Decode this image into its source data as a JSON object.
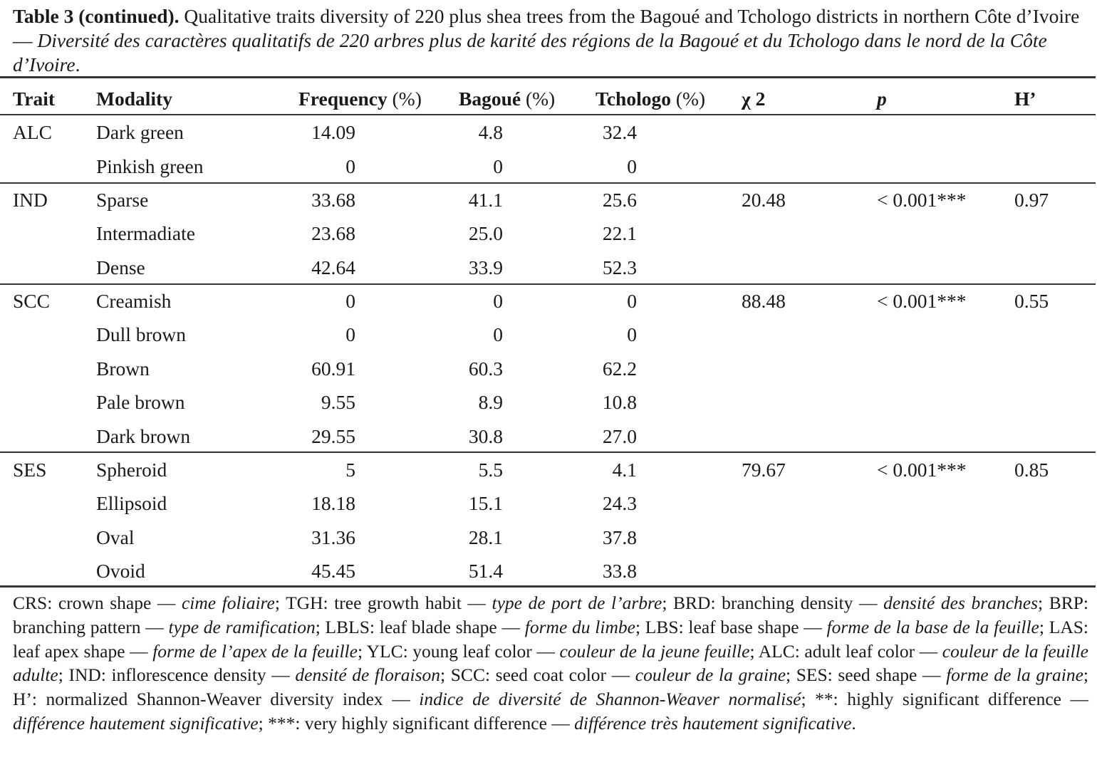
{
  "caption": {
    "label": "Table 3 (continued).",
    "english": " Qualitative traits diversity of 220 plus shea trees from the Bagoué and Tchologo districts in northern Côte d’Ivoire — ",
    "french": "Diversité des caractères qualitatifs de 220 arbres plus de karité des régions de la Bagoué et du Tchologo dans le nord de la Côte d’Ivoire",
    "end": "."
  },
  "headers": {
    "trait": "Trait",
    "modality": "Modality",
    "frequency": "Frequency",
    "frequency_unit": " (%)",
    "bagoue": "Bagoué",
    "bagoue_unit": " (%)",
    "tchologo": "Tchologo",
    "tchologo_unit": " (%)",
    "chi2": "χ 2",
    "p": "p",
    "h": "H’"
  },
  "rows": [
    {
      "trait": "ALC",
      "modality": "Dark green",
      "frequency": "14.09",
      "bagoue": "4.8",
      "tchologo": "32.4",
      "chi2": "",
      "p": "",
      "h": ""
    },
    {
      "trait": "",
      "modality": "Pinkish green",
      "frequency": "0",
      "bagoue": "0",
      "tchologo": "0",
      "chi2": "",
      "p": "",
      "h": ""
    },
    {
      "trait": "IND",
      "modality": "Sparse",
      "frequency": "33.68",
      "bagoue": "41.1",
      "tchologo": "25.6",
      "chi2": "20.48",
      "p": "< 0.001***",
      "h": "0.97"
    },
    {
      "trait": "",
      "modality": "Intermadiate",
      "frequency": "23.68",
      "bagoue": "25.0",
      "tchologo": "22.1",
      "chi2": "",
      "p": "",
      "h": ""
    },
    {
      "trait": "",
      "modality": "Dense",
      "frequency": "42.64",
      "bagoue": "33.9",
      "tchologo": "52.3",
      "chi2": "",
      "p": "",
      "h": ""
    },
    {
      "trait": "SCC",
      "modality": "Creamish",
      "frequency": "0",
      "bagoue": "0",
      "tchologo": "0",
      "chi2": "88.48",
      "p": "< 0.001***",
      "h": "0.55"
    },
    {
      "trait": "",
      "modality": "Dull brown",
      "frequency": "0",
      "bagoue": "0",
      "tchologo": "0",
      "chi2": "",
      "p": "",
      "h": ""
    },
    {
      "trait": "",
      "modality": "Brown",
      "frequency": "60.91",
      "bagoue": "60.3",
      "tchologo": "62.2",
      "chi2": "",
      "p": "",
      "h": ""
    },
    {
      "trait": "",
      "modality": "Pale brown",
      "frequency": "9.55",
      "bagoue": "8.9",
      "tchologo": "10.8",
      "chi2": "",
      "p": "",
      "h": ""
    },
    {
      "trait": "",
      "modality": "Dark brown",
      "frequency": "29.55",
      "bagoue": "30.8",
      "tchologo": "27.0",
      "chi2": "",
      "p": "",
      "h": ""
    },
    {
      "trait": "SES",
      "modality": "Spheroid",
      "frequency": "5",
      "bagoue": "5.5",
      "tchologo": "4.1",
      "chi2": "79.67",
      "p": "< 0.001***",
      "h": "0.85"
    },
    {
      "trait": "",
      "modality": "Ellipsoid",
      "frequency": "18.18",
      "bagoue": "15.1",
      "tchologo": "24.3",
      "chi2": "",
      "p": "",
      "h": ""
    },
    {
      "trait": "",
      "modality": "Oval",
      "frequency": "31.36",
      "bagoue": "28.1",
      "tchologo": "37.8",
      "chi2": "",
      "p": "",
      "h": ""
    },
    {
      "trait": "",
      "modality": "Ovoid",
      "frequency": "45.45",
      "bagoue": "51.4",
      "tchologo": "33.8",
      "chi2": "",
      "p": "",
      "h": ""
    }
  ],
  "footnote": [
    {
      "t": "CRS: crown shape — ",
      "i": false
    },
    {
      "t": "cime foliaire",
      "i": true
    },
    {
      "t": "; TGH: tree growth habit — ",
      "i": false
    },
    {
      "t": "type de port de l’arbre",
      "i": true
    },
    {
      "t": "; BRD: branching density — ",
      "i": false
    },
    {
      "t": "densité des branches",
      "i": true
    },
    {
      "t": "; BRP: branching pattern — ",
      "i": false
    },
    {
      "t": "type de ramification",
      "i": true
    },
    {
      "t": "; LBLS: leaf blade shape — ",
      "i": false
    },
    {
      "t": "forme du limbe",
      "i": true
    },
    {
      "t": "; LBS: leaf base shape — ",
      "i": false
    },
    {
      "t": "forme de la base de la feuille",
      "i": true
    },
    {
      "t": "; LAS: leaf apex shape — ",
      "i": false
    },
    {
      "t": "forme de l’apex de la feuille",
      "i": true
    },
    {
      "t": "; YLC: young leaf color — ",
      "i": false
    },
    {
      "t": "couleur de la jeune feuille",
      "i": true
    },
    {
      "t": "; ALC: adult leaf color — ",
      "i": false
    },
    {
      "t": "couleur de la feuille adulte",
      "i": true
    },
    {
      "t": "; IND: inflorescence density — ",
      "i": false
    },
    {
      "t": "densité de floraison",
      "i": true
    },
    {
      "t": "; SCC: seed coat color — ",
      "i": false
    },
    {
      "t": "couleur de la graine",
      "i": true
    },
    {
      "t": "; SES: seed shape — ",
      "i": false
    },
    {
      "t": "forme de la graine",
      "i": true
    },
    {
      "t": "; H’: normalized Shannon-Weaver diversity index — ",
      "i": false
    },
    {
      "t": "indice de diversité de Shannon-Weaver normalisé",
      "i": true
    },
    {
      "t": "; **: highly significant difference — ",
      "i": false
    },
    {
      "t": "différence hautement significative",
      "i": true
    },
    {
      "t": "; ***: very highly significant difference — ",
      "i": false
    },
    {
      "t": "différence très hautement significative",
      "i": true
    },
    {
      "t": ".",
      "i": false
    }
  ]
}
